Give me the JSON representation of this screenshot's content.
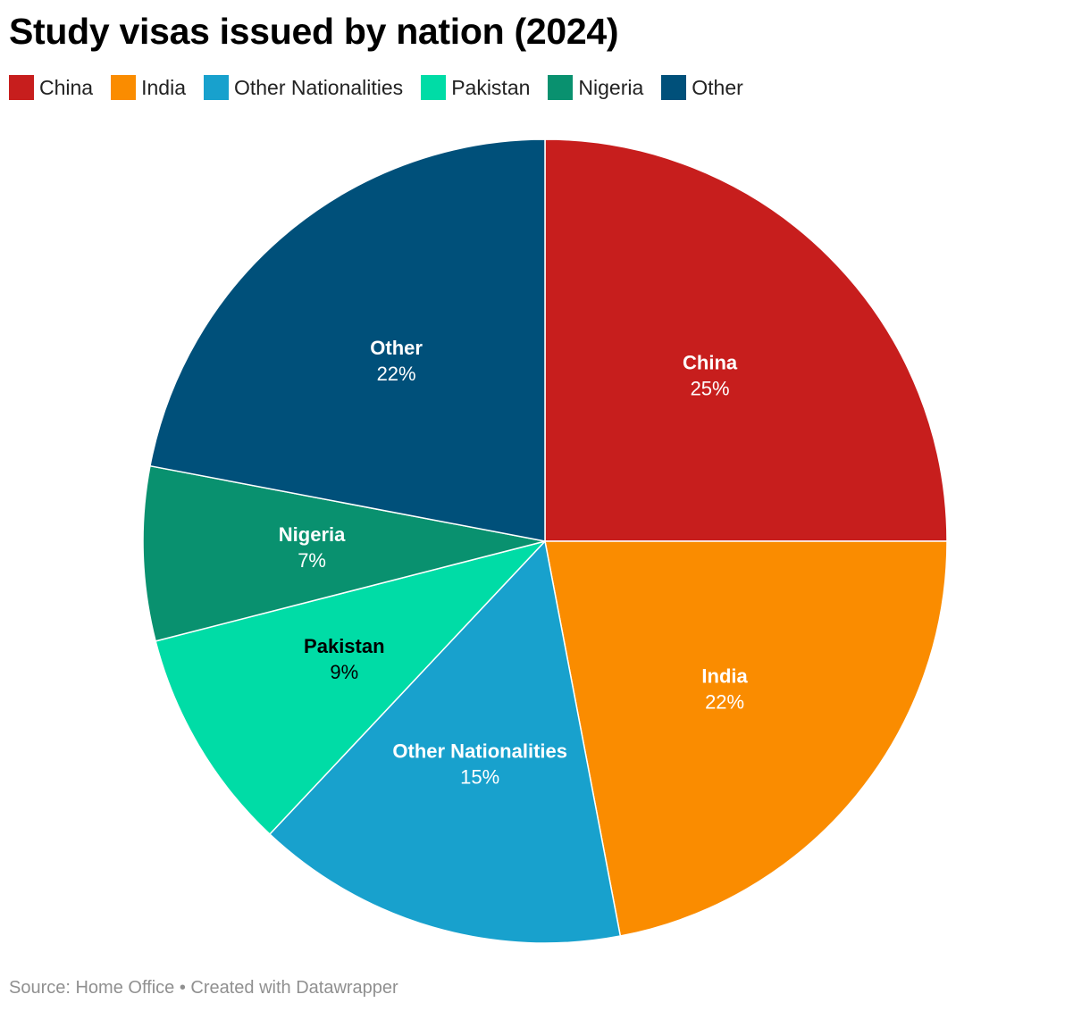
{
  "chart_data": {
    "type": "pie",
    "title": "Study visas issued by nation (2024)",
    "categories": [
      "China",
      "India",
      "Other Nationalities",
      "Pakistan",
      "Nigeria",
      "Other"
    ],
    "values": [
      25,
      22,
      15,
      9,
      7,
      22
    ],
    "labels": [
      "25%",
      "22%",
      "15%",
      "9%",
      "7%",
      "22%"
    ],
    "colors": [
      "#c71e1d",
      "#fa8c00",
      "#18a1cd",
      "#00dca6",
      "#09916f",
      "#00507a"
    ],
    "label_colors": [
      "#ffffff",
      "#ffffff",
      "#ffffff",
      "#000000",
      "#ffffff",
      "#ffffff"
    ],
    "legend_position": "top-left",
    "start_angle": "12 o'clock",
    "direction": "clockwise"
  },
  "footer": {
    "source_text": "Source: Home Office • Created with Datawrapper"
  }
}
